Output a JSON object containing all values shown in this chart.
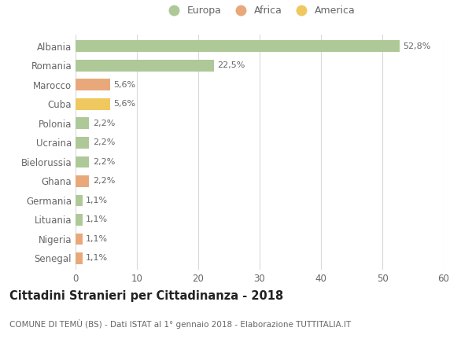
{
  "categories": [
    "Albania",
    "Romania",
    "Marocco",
    "Cuba",
    "Polonia",
    "Ucraina",
    "Bielorussia",
    "Ghana",
    "Germania",
    "Lituania",
    "Nigeria",
    "Senegal"
  ],
  "values": [
    52.8,
    22.5,
    5.6,
    5.6,
    2.2,
    2.2,
    2.2,
    2.2,
    1.1,
    1.1,
    1.1,
    1.1
  ],
  "labels": [
    "52,8%",
    "22,5%",
    "5,6%",
    "5,6%",
    "2,2%",
    "2,2%",
    "2,2%",
    "2,2%",
    "1,1%",
    "1,1%",
    "1,1%",
    "1,1%"
  ],
  "colors": [
    "#aec898",
    "#aec898",
    "#e8a87a",
    "#f0c860",
    "#aec898",
    "#aec898",
    "#aec898",
    "#e8a87a",
    "#aec898",
    "#aec898",
    "#e8a87a",
    "#e8a87a"
  ],
  "legend_labels": [
    "Europa",
    "Africa",
    "America"
  ],
  "legend_colors": [
    "#aec898",
    "#e8a87a",
    "#f0c860"
  ],
  "title": "Cittadini Stranieri per Cittadinanza - 2018",
  "subtitle": "COMUNE DI TEMÙ (BS) - Dati ISTAT al 1° gennaio 2018 - Elaborazione TUTTITALIA.IT",
  "xlim": [
    0,
    60
  ],
  "xticks": [
    0,
    10,
    20,
    30,
    40,
    50,
    60
  ],
  "background_color": "#ffffff",
  "grid_color": "#d8d8d8",
  "bar_height": 0.6
}
